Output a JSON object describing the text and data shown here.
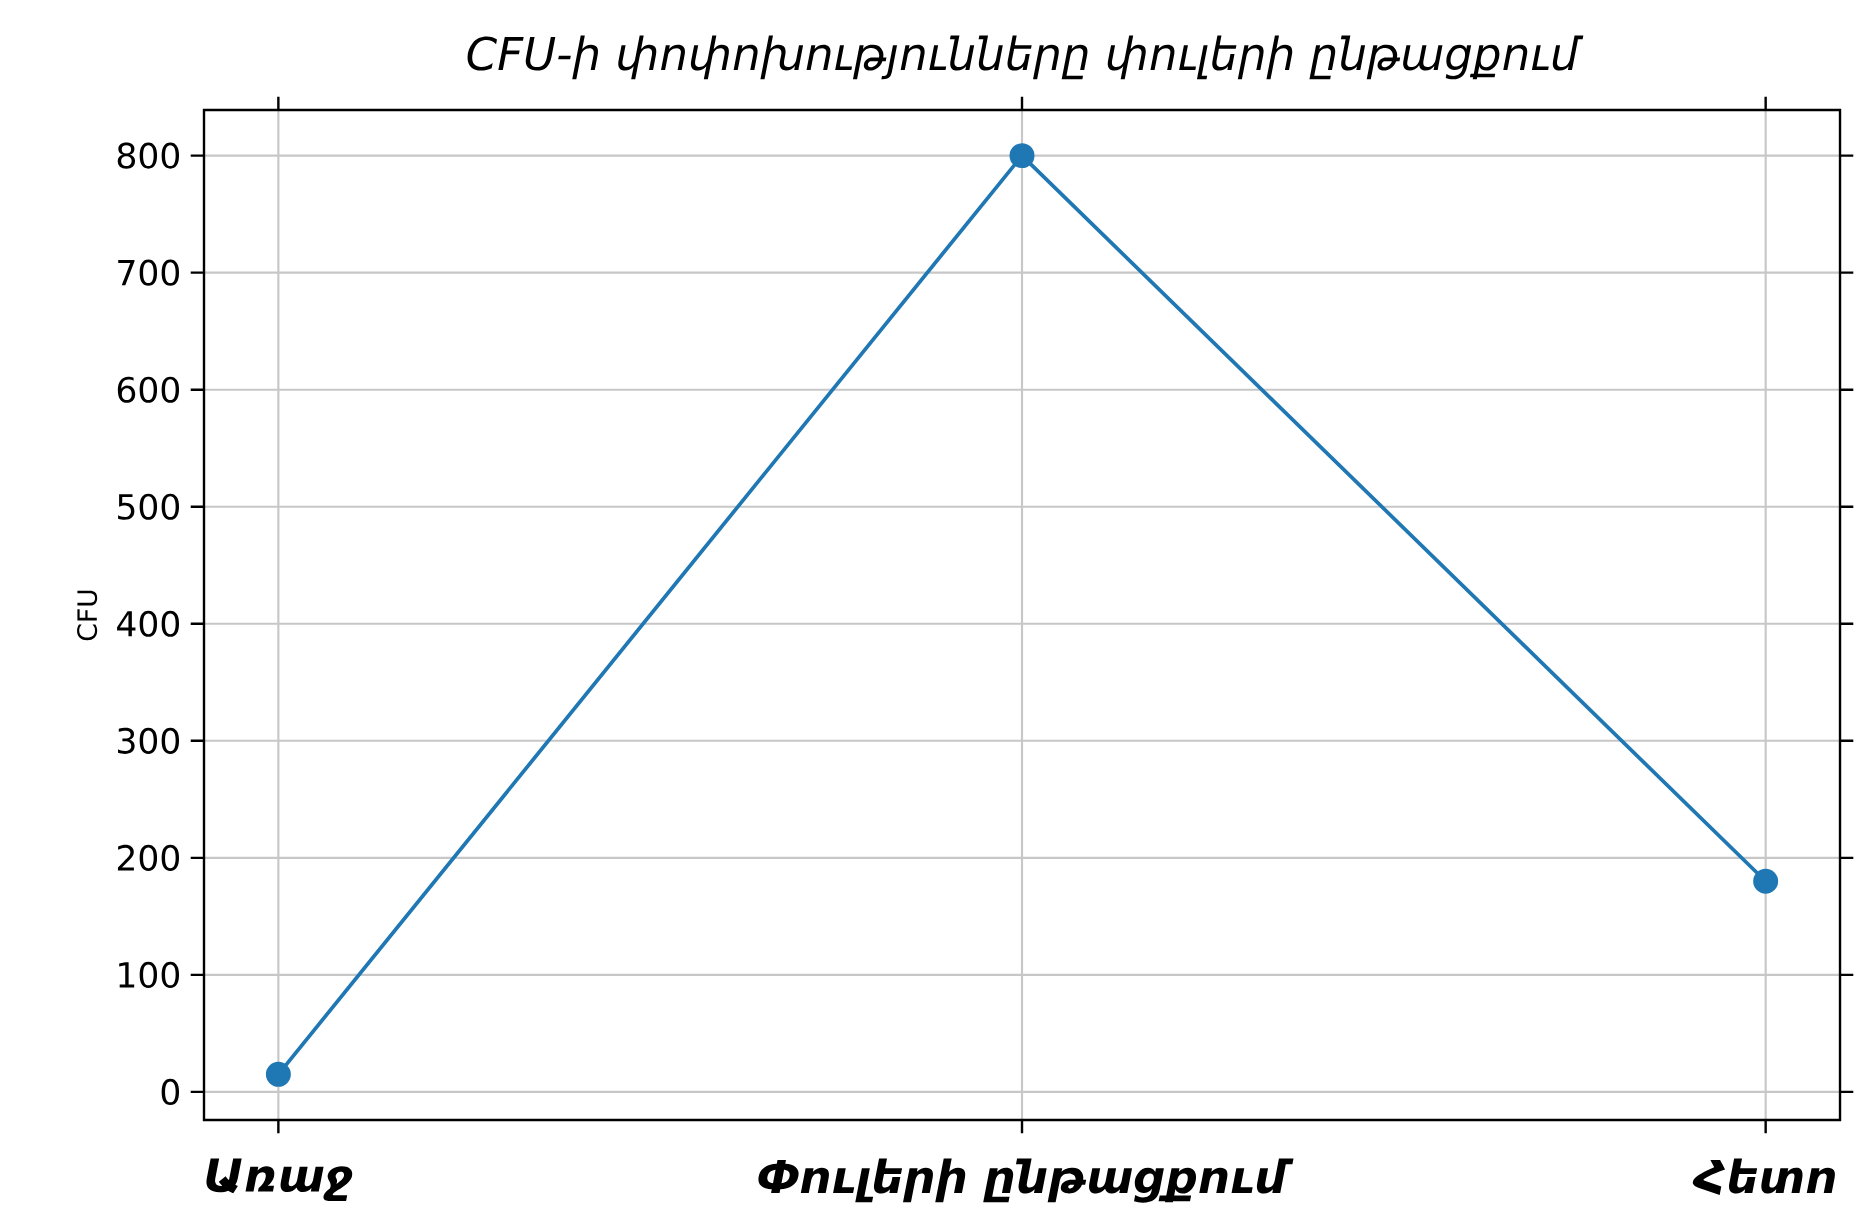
{
  "chart_data": {
    "type": "line",
    "title": "CFU-ի փոփոխությունները փուլերի ընթացքում",
    "ylabel": "CFU",
    "categories": [
      "Առաջ",
      "Փուլերի ընթացքում",
      "Հետո"
    ],
    "series": [
      {
        "color": "#1f77b4",
        "values": [
          15,
          800,
          180
        ]
      }
    ],
    "ylim": [
      -24,
      839
    ],
    "yticks": [
      0,
      100,
      200,
      300,
      400,
      500,
      600,
      700,
      800
    ],
    "grid": true,
    "marker": "circle",
    "line_style": "solid"
  }
}
